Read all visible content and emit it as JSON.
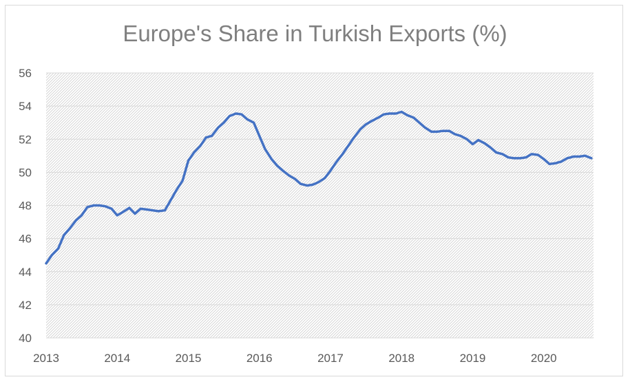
{
  "chart_data": {
    "type": "line",
    "title": "Europe's Share in Turkish Exports (%)",
    "xlabel": "",
    "ylabel": "",
    "ylim": [
      40,
      56
    ],
    "yticks": [
      40,
      42,
      44,
      46,
      48,
      50,
      52,
      54,
      56
    ],
    "xlim": [
      2013,
      2020.7
    ],
    "xticks": [
      "2013",
      "2014",
      "2015",
      "2016",
      "2017",
      "2018",
      "2019",
      "2020"
    ],
    "grid": true,
    "legend": "none",
    "line_color": "#4472c4",
    "series": [
      {
        "x": [
          2013.0,
          2013.08,
          2013.17,
          2013.25,
          2013.33,
          2013.42,
          2013.5,
          2013.58,
          2013.67,
          2013.75,
          2013.83,
          2013.92,
          2014.0,
          2014.08,
          2014.17,
          2014.25,
          2014.33,
          2014.42,
          2014.5,
          2014.58,
          2014.67,
          2014.75,
          2014.83,
          2014.92,
          2015.0,
          2015.08,
          2015.17,
          2015.25,
          2015.33,
          2015.42,
          2015.5,
          2015.58,
          2015.67,
          2015.75,
          2015.83,
          2015.92,
          2016.0,
          2016.08,
          2016.17,
          2016.25,
          2016.33,
          2016.42,
          2016.5,
          2016.58,
          2016.67,
          2016.75,
          2016.83,
          2016.92,
          2017.0,
          2017.08,
          2017.17,
          2017.25,
          2017.33,
          2017.42,
          2017.5,
          2017.58,
          2017.67,
          2017.75,
          2017.83,
          2017.92,
          2018.0,
          2018.08,
          2018.17,
          2018.25,
          2018.33,
          2018.42,
          2018.5,
          2018.58,
          2018.67,
          2018.75,
          2018.83,
          2018.92,
          2019.0,
          2019.08,
          2019.17,
          2019.25,
          2019.33,
          2019.42,
          2019.5,
          2019.58,
          2019.67,
          2019.75,
          2019.83,
          2019.92,
          2020.0,
          2020.08,
          2020.17,
          2020.25,
          2020.33,
          2020.42,
          2020.5,
          2020.58,
          2020.67
        ],
        "values": [
          44.5,
          45.0,
          45.4,
          46.2,
          46.6,
          47.1,
          47.4,
          47.9,
          48.0,
          48.0,
          47.95,
          47.8,
          47.4,
          47.6,
          47.85,
          47.5,
          47.8,
          47.75,
          47.7,
          47.65,
          47.7,
          48.3,
          48.9,
          49.5,
          50.7,
          51.2,
          51.6,
          52.1,
          52.2,
          52.7,
          53.0,
          53.4,
          53.55,
          53.5,
          53.2,
          53.0,
          52.2,
          51.4,
          50.8,
          50.4,
          50.1,
          49.8,
          49.6,
          49.3,
          49.2,
          49.25,
          49.4,
          49.65,
          50.1,
          50.6,
          51.1,
          51.6,
          52.1,
          52.6,
          52.9,
          53.1,
          53.3,
          53.5,
          53.55,
          53.55,
          53.65,
          53.45,
          53.3,
          53.0,
          52.7,
          52.45,
          52.45,
          52.5,
          52.5,
          52.3,
          52.2,
          52.0,
          51.7,
          51.95,
          51.75,
          51.5,
          51.2,
          51.1,
          50.9,
          50.85,
          50.85,
          50.9,
          51.1,
          51.05,
          50.8,
          50.5,
          50.55,
          50.65,
          50.85,
          50.95,
          50.95,
          51.0,
          50.85
        ]
      }
    ]
  }
}
